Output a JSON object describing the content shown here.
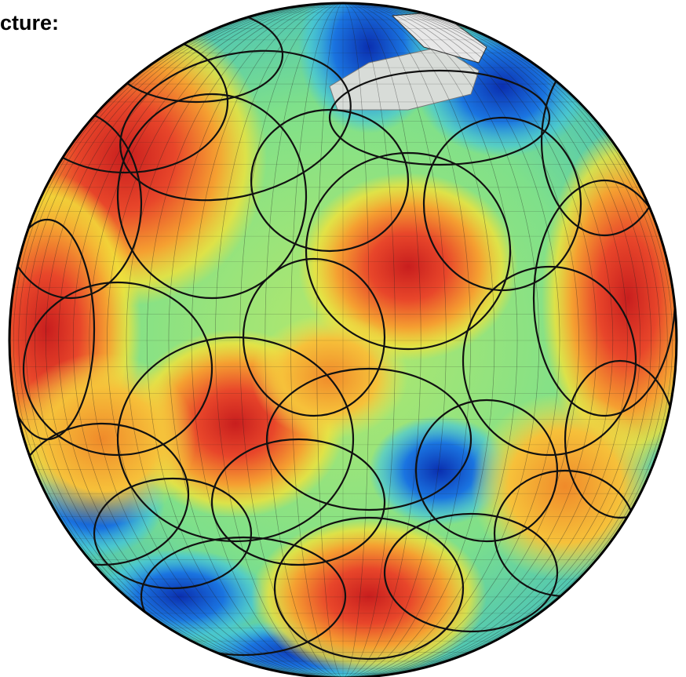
{
  "caption": "cture:"
}
